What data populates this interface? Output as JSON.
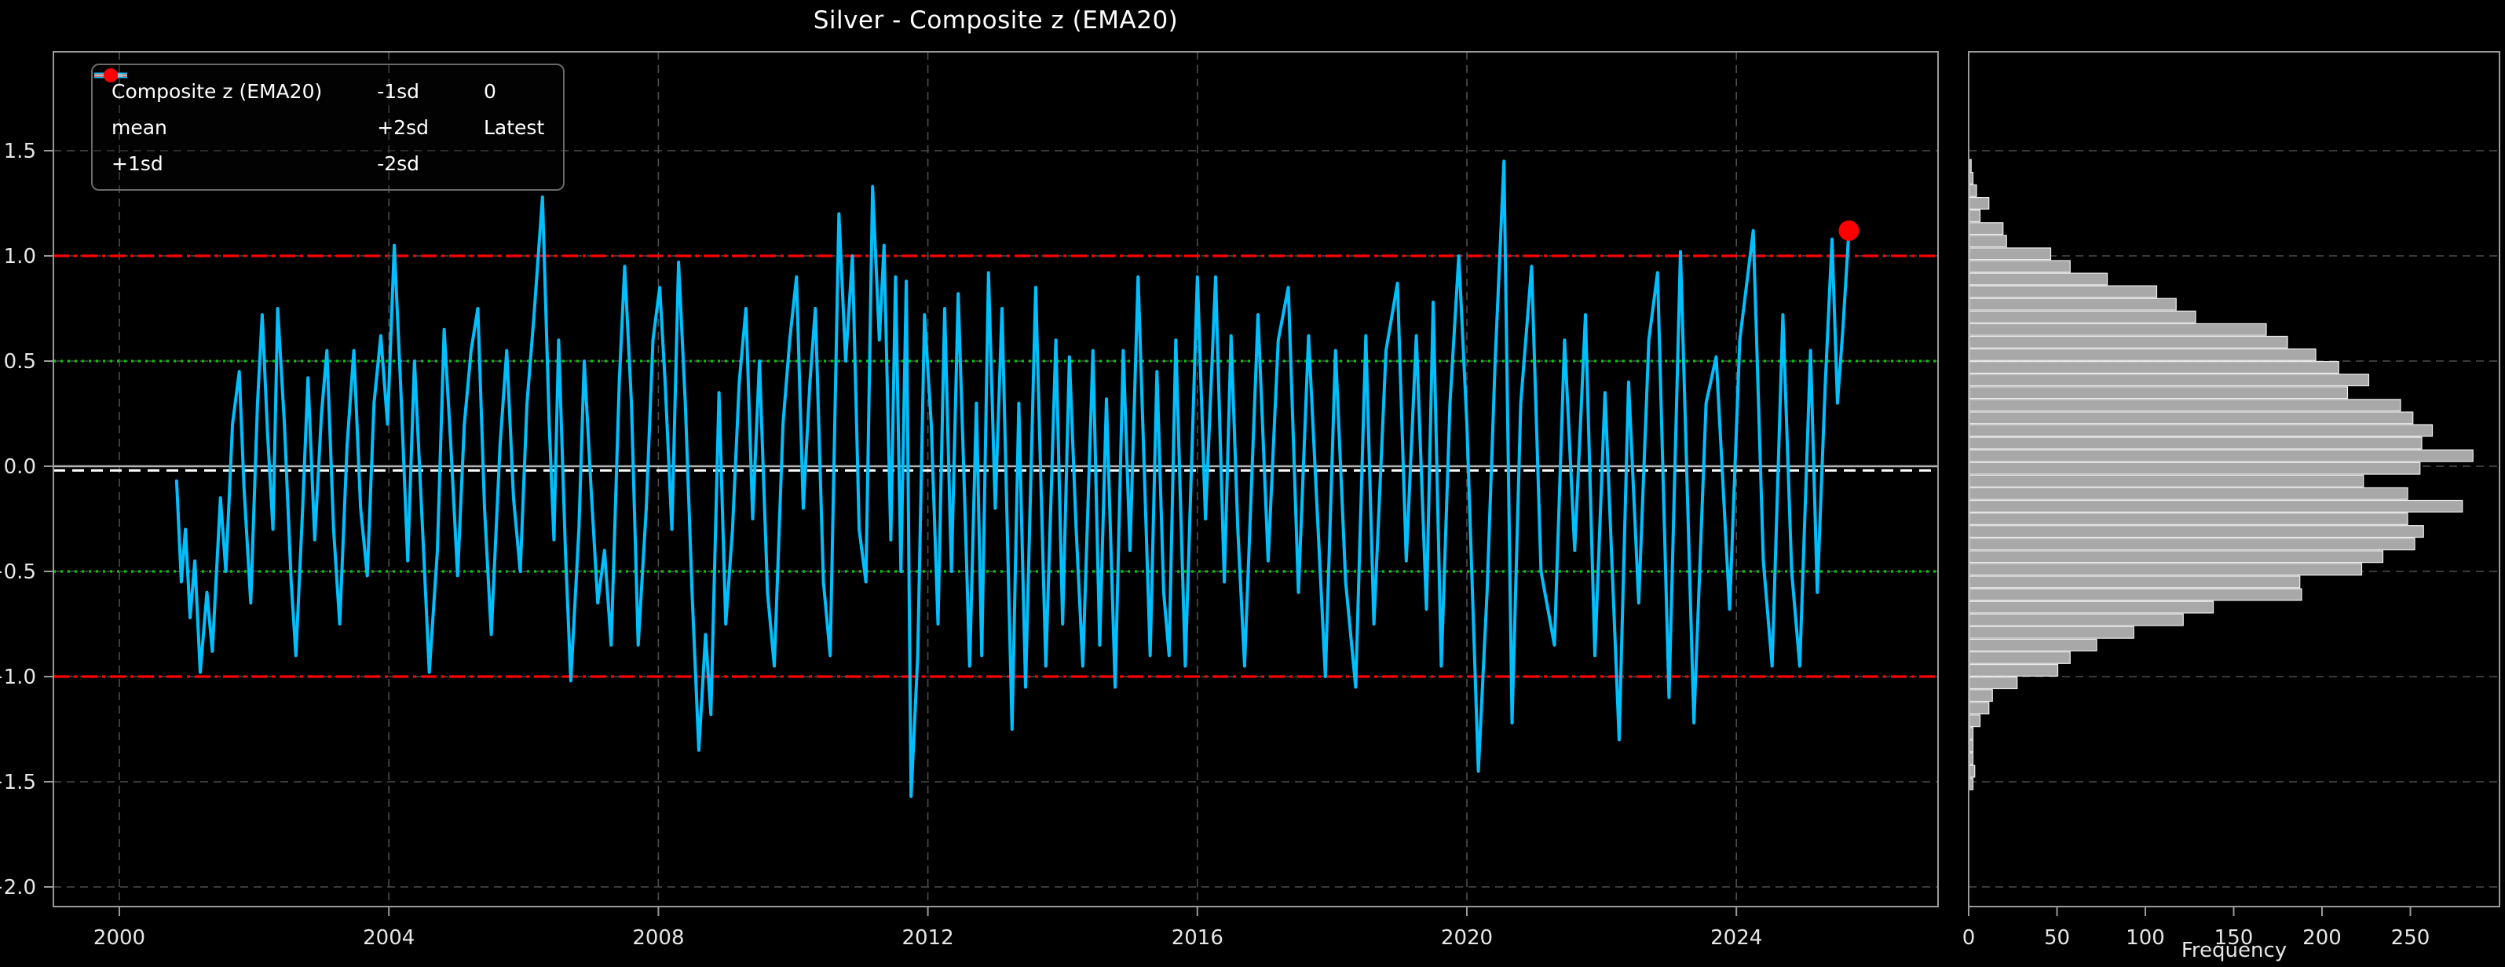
{
  "colors": {
    "background": "#000000",
    "series": "#00BFFF",
    "mean": "#ffffff",
    "sd1": "#00cc00",
    "sd2": "#ff0000",
    "zero": "#b3b3b3",
    "latest": "#ff0000",
    "grid": "#4d4d4d",
    "spine": "#9a9a9a",
    "bar_fill": "#a8a8a8",
    "bar_edge": "#eeeeee",
    "text": "#e6e6e6"
  },
  "chart_data": [
    {
      "type": "line",
      "title": "Silver - Composite z (EMA20)",
      "xlabel": "",
      "ylabel": "",
      "xlim": [
        1999.0,
        2027.0
      ],
      "ylim": [
        -2.09,
        1.97
      ],
      "x_ticks": [
        2000,
        2004,
        2008,
        2012,
        2016,
        2020,
        2024
      ],
      "y_ticks": [
        1.5,
        1.0,
        0.5,
        0.0,
        -0.5,
        -1.0,
        -1.5,
        -2.0
      ],
      "grid": "dashed, vertical and horizontal",
      "legend_position": "upper left, 3 columns",
      "reference_lines": [
        {
          "name": "mean",
          "value": -0.02,
          "style": "dashed",
          "color": "#ffffff",
          "lw": 3
        },
        {
          "name": "+1sd",
          "value": 0.5,
          "style": "dotted",
          "color": "#00cc00",
          "lw": 3.2
        },
        {
          "name": "-1sd",
          "value": -0.5,
          "style": "dotted",
          "color": "#00cc00",
          "lw": 3.2
        },
        {
          "name": "+2sd",
          "value": 1.0,
          "style": "dashdot",
          "color": "#ff0000",
          "lw": 3.2
        },
        {
          "name": "-2sd",
          "value": -1.0,
          "style": "dashdot",
          "color": "#ff0000",
          "lw": 3.2
        },
        {
          "name": "0",
          "value": 0.0,
          "style": "solid",
          "color": "#b3b3b3",
          "lw": 2.6
        }
      ],
      "latest": {
        "name": "Latest",
        "x": 2025.67,
        "y": 1.12,
        "color": "#ff0000"
      },
      "series": [
        {
          "name": "Composite z (EMA20)",
          "color": "#00BFFF",
          "style": "solid",
          "lw": 4,
          "points": [
            [
              2000.85,
              -0.07
            ],
            [
              2000.92,
              -0.55
            ],
            [
              2000.98,
              -0.3
            ],
            [
              2001.05,
              -0.72
            ],
            [
              2001.12,
              -0.45
            ],
            [
              2001.2,
              -0.98
            ],
            [
              2001.3,
              -0.6
            ],
            [
              2001.38,
              -0.88
            ],
            [
              2001.5,
              -0.15
            ],
            [
              2001.58,
              -0.5
            ],
            [
              2001.68,
              0.2
            ],
            [
              2001.78,
              0.45
            ],
            [
              2001.85,
              -0.1
            ],
            [
              2001.95,
              -0.65
            ],
            [
              2002.05,
              0.3
            ],
            [
              2002.12,
              0.72
            ],
            [
              2002.2,
              0.15
            ],
            [
              2002.28,
              -0.3
            ],
            [
              2002.35,
              0.75
            ],
            [
              2002.45,
              0.2
            ],
            [
              2002.55,
              -0.55
            ],
            [
              2002.62,
              -0.9
            ],
            [
              2002.72,
              -0.2
            ],
            [
              2002.8,
              0.42
            ],
            [
              2002.9,
              -0.35
            ],
            [
              2003.0,
              0.25
            ],
            [
              2003.08,
              0.55
            ],
            [
              2003.18,
              -0.3
            ],
            [
              2003.27,
              -0.75
            ],
            [
              2003.38,
              0.1
            ],
            [
              2003.48,
              0.55
            ],
            [
              2003.58,
              -0.2
            ],
            [
              2003.68,
              -0.52
            ],
            [
              2003.78,
              0.3
            ],
            [
              2003.88,
              0.62
            ],
            [
              2003.98,
              0.2
            ],
            [
              2004.08,
              1.05
            ],
            [
              2004.18,
              0.35
            ],
            [
              2004.28,
              -0.45
            ],
            [
              2004.38,
              0.5
            ],
            [
              2004.5,
              -0.3
            ],
            [
              2004.6,
              -0.98
            ],
            [
              2004.72,
              -0.4
            ],
            [
              2004.82,
              0.65
            ],
            [
              2004.92,
              0.1
            ],
            [
              2005.02,
              -0.52
            ],
            [
              2005.12,
              0.2
            ],
            [
              2005.22,
              0.55
            ],
            [
              2005.32,
              0.75
            ],
            [
              2005.42,
              -0.2
            ],
            [
              2005.52,
              -0.8
            ],
            [
              2005.65,
              0.1
            ],
            [
              2005.75,
              0.55
            ],
            [
              2005.85,
              -0.15
            ],
            [
              2005.95,
              -0.5
            ],
            [
              2006.05,
              0.3
            ],
            [
              2006.15,
              0.7
            ],
            [
              2006.28,
              1.28
            ],
            [
              2006.38,
              0.2
            ],
            [
              2006.45,
              -0.35
            ],
            [
              2006.52,
              0.6
            ],
            [
              2006.62,
              -0.4
            ],
            [
              2006.7,
              -1.02
            ],
            [
              2006.82,
              -0.3
            ],
            [
              2006.9,
              0.5
            ],
            [
              2007.0,
              -0.1
            ],
            [
              2007.1,
              -0.65
            ],
            [
              2007.2,
              -0.4
            ],
            [
              2007.3,
              -0.85
            ],
            [
              2007.42,
              0.4
            ],
            [
              2007.5,
              0.95
            ],
            [
              2007.6,
              0.3
            ],
            [
              2007.7,
              -0.85
            ],
            [
              2007.82,
              -0.2
            ],
            [
              2007.92,
              0.6
            ],
            [
              2008.02,
              0.85
            ],
            [
              2008.1,
              0.4
            ],
            [
              2008.2,
              -0.3
            ],
            [
              2008.3,
              0.97
            ],
            [
              2008.4,
              0.3
            ],
            [
              2008.5,
              -0.6
            ],
            [
              2008.6,
              -1.35
            ],
            [
              2008.7,
              -0.8
            ],
            [
              2008.78,
              -1.18
            ],
            [
              2008.9,
              0.35
            ],
            [
              2009.0,
              -0.75
            ],
            [
              2009.1,
              -0.3
            ],
            [
              2009.2,
              0.4
            ],
            [
              2009.3,
              0.75
            ],
            [
              2009.4,
              -0.25
            ],
            [
              2009.5,
              0.5
            ],
            [
              2009.62,
              -0.6
            ],
            [
              2009.72,
              -0.95
            ],
            [
              2009.85,
              0.2
            ],
            [
              2009.95,
              0.6
            ],
            [
              2010.05,
              0.9
            ],
            [
              2010.15,
              -0.2
            ],
            [
              2010.25,
              0.4
            ],
            [
              2010.33,
              0.75
            ],
            [
              2010.45,
              -0.55
            ],
            [
              2010.55,
              -0.9
            ],
            [
              2010.68,
              1.2
            ],
            [
              2010.78,
              0.5
            ],
            [
              2010.88,
              1.0
            ],
            [
              2010.98,
              -0.3
            ],
            [
              2011.08,
              -0.55
            ],
            [
              2011.18,
              1.33
            ],
            [
              2011.28,
              0.6
            ],
            [
              2011.35,
              1.05
            ],
            [
              2011.45,
              -0.35
            ],
            [
              2011.52,
              0.9
            ],
            [
              2011.6,
              -0.5
            ],
            [
              2011.68,
              0.88
            ],
            [
              2011.75,
              -1.57
            ],
            [
              2011.85,
              -0.9
            ],
            [
              2011.95,
              0.72
            ],
            [
              2012.05,
              0.2
            ],
            [
              2012.15,
              -0.75
            ],
            [
              2012.25,
              0.75
            ],
            [
              2012.35,
              -0.5
            ],
            [
              2012.45,
              0.82
            ],
            [
              2012.55,
              -0.2
            ],
            [
              2012.62,
              -0.95
            ],
            [
              2012.72,
              0.3
            ],
            [
              2012.8,
              -0.9
            ],
            [
              2012.9,
              0.92
            ],
            [
              2013.0,
              -0.2
            ],
            [
              2013.1,
              0.75
            ],
            [
              2013.25,
              -1.25
            ],
            [
              2013.35,
              0.3
            ],
            [
              2013.45,
              -1.05
            ],
            [
              2013.6,
              0.85
            ],
            [
              2013.75,
              -0.95
            ],
            [
              2013.9,
              0.6
            ],
            [
              2014.0,
              -0.75
            ],
            [
              2014.1,
              0.52
            ],
            [
              2014.2,
              -0.3
            ],
            [
              2014.3,
              -0.95
            ],
            [
              2014.45,
              0.55
            ],
            [
              2014.55,
              -0.85
            ],
            [
              2014.65,
              0.32
            ],
            [
              2014.78,
              -1.05
            ],
            [
              2014.9,
              0.55
            ],
            [
              2015.0,
              -0.4
            ],
            [
              2015.12,
              0.9
            ],
            [
              2015.3,
              -0.9
            ],
            [
              2015.4,
              0.45
            ],
            [
              2015.5,
              -0.6
            ],
            [
              2015.58,
              -0.9
            ],
            [
              2015.68,
              0.6
            ],
            [
              2015.82,
              -0.95
            ],
            [
              2016.0,
              0.9
            ],
            [
              2016.12,
              -0.25
            ],
            [
              2016.27,
              0.9
            ],
            [
              2016.4,
              -0.55
            ],
            [
              2016.5,
              0.62
            ],
            [
              2016.6,
              -0.3
            ],
            [
              2016.7,
              -0.95
            ],
            [
              2016.9,
              0.72
            ],
            [
              2017.05,
              -0.45
            ],
            [
              2017.2,
              0.6
            ],
            [
              2017.35,
              0.85
            ],
            [
              2017.5,
              -0.6
            ],
            [
              2017.65,
              0.62
            ],
            [
              2017.9,
              -1.0
            ],
            [
              2018.05,
              0.55
            ],
            [
              2018.2,
              -0.55
            ],
            [
              2018.35,
              -1.05
            ],
            [
              2018.5,
              0.62
            ],
            [
              2018.62,
              -0.75
            ],
            [
              2018.8,
              0.55
            ],
            [
              2018.97,
              0.87
            ],
            [
              2019.1,
              -0.45
            ],
            [
              2019.25,
              0.62
            ],
            [
              2019.4,
              -0.68
            ],
            [
              2019.5,
              0.78
            ],
            [
              2019.62,
              -0.95
            ],
            [
              2019.75,
              0.3
            ],
            [
              2019.88,
              1.0
            ],
            [
              2020.0,
              0.2
            ],
            [
              2020.17,
              -1.45
            ],
            [
              2020.3,
              -0.6
            ],
            [
              2020.42,
              0.5
            ],
            [
              2020.55,
              1.45
            ],
            [
              2020.67,
              -1.22
            ],
            [
              2020.8,
              0.3
            ],
            [
              2020.96,
              0.95
            ],
            [
              2021.1,
              -0.5
            ],
            [
              2021.3,
              -0.85
            ],
            [
              2021.45,
              0.6
            ],
            [
              2021.6,
              -0.4
            ],
            [
              2021.76,
              0.72
            ],
            [
              2021.9,
              -0.9
            ],
            [
              2022.05,
              0.35
            ],
            [
              2022.26,
              -1.3
            ],
            [
              2022.4,
              0.4
            ],
            [
              2022.55,
              -0.65
            ],
            [
              2022.7,
              0.6
            ],
            [
              2022.83,
              0.92
            ],
            [
              2023.0,
              -1.1
            ],
            [
              2023.17,
              1.02
            ],
            [
              2023.37,
              -1.22
            ],
            [
              2023.55,
              0.3
            ],
            [
              2023.7,
              0.52
            ],
            [
              2023.9,
              -0.68
            ],
            [
              2024.05,
              0.6
            ],
            [
              2024.25,
              1.12
            ],
            [
              2024.4,
              -0.45
            ],
            [
              2024.53,
              -0.95
            ],
            [
              2024.69,
              0.72
            ],
            [
              2024.82,
              -0.5
            ],
            [
              2024.94,
              -0.95
            ],
            [
              2025.1,
              0.55
            ],
            [
              2025.2,
              -0.6
            ],
            [
              2025.32,
              0.4
            ],
            [
              2025.42,
              1.08
            ],
            [
              2025.5,
              0.3
            ],
            [
              2025.58,
              0.65
            ],
            [
              2025.67,
              1.12
            ]
          ]
        }
      ]
    },
    {
      "type": "bar",
      "orientation": "horizontal",
      "title": "",
      "xlabel": "Frequency",
      "ylabel": "",
      "x_ticks": [
        0,
        50,
        100,
        150,
        200,
        250
      ],
      "xlim": [
        0,
        300
      ],
      "grid": "horizontal dashed only",
      "bin_center_top": 1.43,
      "bin_step": 0.06,
      "frequencies": [
        1,
        2,
        4,
        11,
        6,
        19,
        21,
        46,
        57,
        78,
        106,
        117,
        128,
        168,
        180,
        196,
        209,
        226,
        214,
        244,
        251,
        262,
        256,
        285,
        255,
        223,
        248,
        279,
        248,
        257,
        252,
        234,
        222,
        187,
        188,
        138,
        121,
        93,
        72,
        57,
        50,
        27,
        13,
        11,
        6,
        2,
        2,
        2,
        3,
        2
      ]
    }
  ],
  "legend": {
    "items": [
      {
        "label": "Composite z (EMA20)",
        "style": "solid",
        "color": "#00BFFF",
        "lw": 7
      },
      {
        "label": "mean",
        "style": "dashed",
        "color": "#ffffff",
        "lw": 3.5
      },
      {
        "label": "+1sd",
        "style": "dotted",
        "color": "#00cc00",
        "lw": 3.5
      },
      {
        "label": "-1sd",
        "style": "dotted",
        "color": "#00cc00",
        "lw": 3.5
      },
      {
        "label": "+2sd",
        "style": "dashdot",
        "color": "#ff0000",
        "lw": 3.5
      },
      {
        "label": "-2sd",
        "style": "dashdot",
        "color": "#ff0000",
        "lw": 3.5
      },
      {
        "label": "0",
        "style": "solid",
        "color": "#b3b3b3",
        "lw": 3
      },
      {
        "label": "Latest",
        "style": "marker",
        "color": "#ff0000",
        "lw": 0
      }
    ]
  }
}
